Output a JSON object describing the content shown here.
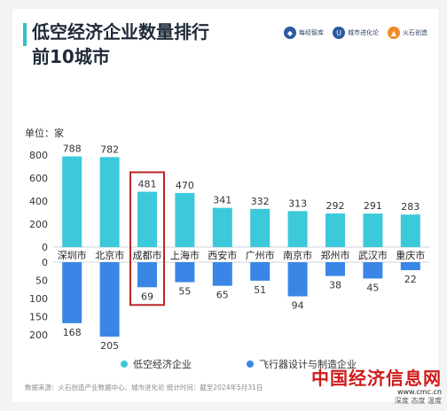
{
  "header": {
    "title_line1": "低空经济企业数量排行",
    "title_line2": "前10城市",
    "logos": [
      "每经智库",
      "城市进化论",
      "火石创造"
    ]
  },
  "unit_label": "单位：家",
  "legend": [
    "低空经济企业",
    "飞行器设计与制造企业"
  ],
  "footer": "数据来源：火石创造产业数据中心、城市进化论 统计时间：截至2024年5月31日",
  "watermark": {
    "main": "中国经济信息网",
    "url": "www.cmc.cn",
    "sub": "深度 态度 温度"
  },
  "colors": {
    "top_bar": "#3cc9da",
    "bottom_bar": "#3a86e6",
    "highlight_box": "#b72727",
    "accent": "#2ec2c9"
  },
  "chart_data": {
    "type": "bar",
    "categories": [
      "深圳市",
      "北京市",
      "成都市",
      "上海市",
      "西安市",
      "广州市",
      "南京市",
      "郑州市",
      "武汉市",
      "重庆市"
    ],
    "series": [
      {
        "name": "低空经济企业",
        "values": [
          788,
          782,
          481,
          470,
          341,
          332,
          313,
          292,
          291,
          283
        ]
      },
      {
        "name": "飞行器设计与制造企业",
        "values": [
          168,
          205,
          69,
          55,
          65,
          51,
          94,
          38,
          45,
          22
        ]
      }
    ],
    "top_axis": {
      "ylim": [
        0,
        800
      ],
      "ticks": [
        "800",
        "600",
        "400",
        "200",
        "0"
      ]
    },
    "bottom_axis": {
      "ylim": [
        0,
        200
      ],
      "ticks": [
        "0",
        "50",
        "100",
        "150",
        "200"
      ]
    },
    "highlighted_category": "成都市",
    "legend_position": "bottom"
  }
}
